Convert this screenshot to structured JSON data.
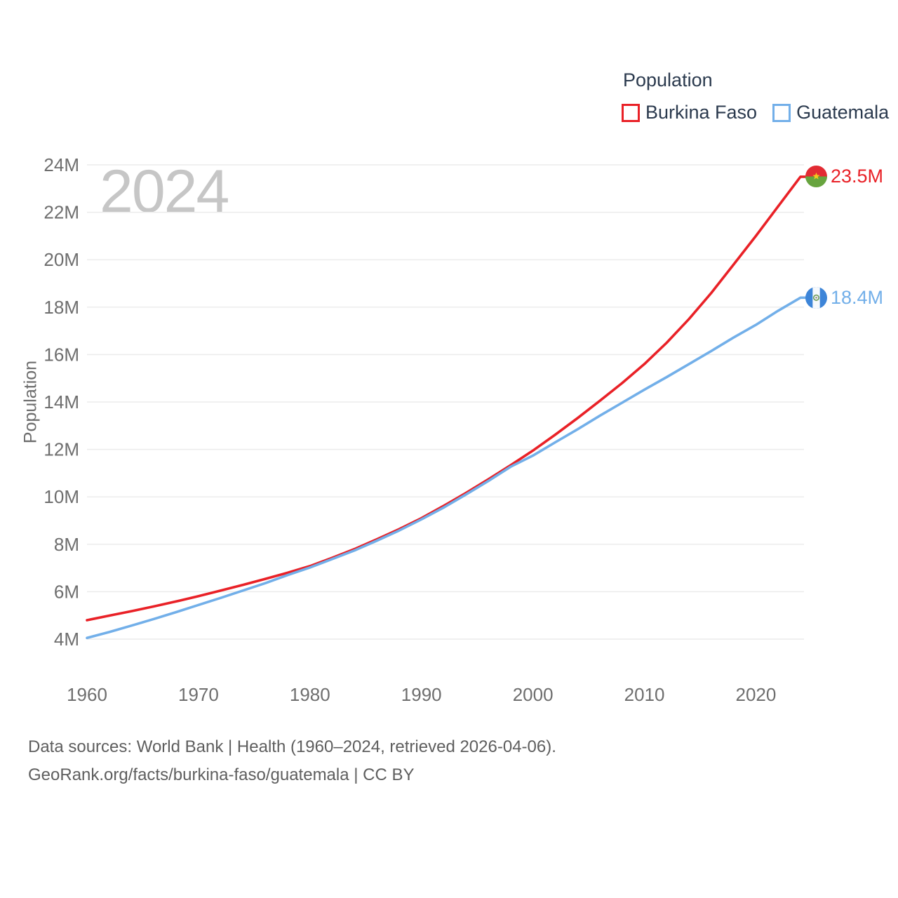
{
  "legend": {
    "title": "Population",
    "items": [
      {
        "label": "Burkina Faso"
      },
      {
        "label": "Guatemala"
      }
    ]
  },
  "footer": {
    "line1": "Data sources: World Bank | Health (1960–2024, retrieved 2026-04-06).",
    "line2": "GeoRank.org/facts/burkina-faso/guatemala | CC BY"
  },
  "chart_data": {
    "type": "line",
    "title": "Population",
    "ylabel": "Population",
    "watermark": "2024",
    "xlim": [
      1960,
      2024
    ],
    "ylim_millions": [
      4,
      24
    ],
    "grid": "horizontal",
    "legend_position": "top-right",
    "x_ticks": [
      1960,
      1970,
      1980,
      1990,
      2000,
      2010,
      2020
    ],
    "y_ticks": [
      {
        "v": 4,
        "label": "4M"
      },
      {
        "v": 6,
        "label": "6M"
      },
      {
        "v": 8,
        "label": "8M"
      },
      {
        "v": 10,
        "label": "10M"
      },
      {
        "v": 12,
        "label": "12M"
      },
      {
        "v": 14,
        "label": "14M"
      },
      {
        "v": 16,
        "label": "16M"
      },
      {
        "v": 18,
        "label": "18M"
      },
      {
        "v": 20,
        "label": "20M"
      },
      {
        "v": 22,
        "label": "22M"
      },
      {
        "v": 24,
        "label": "24M"
      }
    ],
    "series": [
      {
        "name": "Burkina Faso",
        "color": "#e92127",
        "flag": "burkina-faso",
        "end_label": "23.5M",
        "end_value_millions": 23.5,
        "years": [
          1960,
          1962,
          1964,
          1966,
          1968,
          1970,
          1972,
          1974,
          1976,
          1978,
          1980,
          1982,
          1984,
          1986,
          1988,
          1990,
          1992,
          1994,
          1996,
          1998,
          2000,
          2002,
          2004,
          2006,
          2008,
          2010,
          2012,
          2014,
          2016,
          2018,
          2020,
          2022,
          2024
        ],
        "values_millions": [
          4.8,
          4.99,
          5.18,
          5.38,
          5.59,
          5.81,
          6.05,
          6.29,
          6.54,
          6.8,
          7.08,
          7.43,
          7.8,
          8.21,
          8.64,
          9.1,
          9.62,
          10.17,
          10.74,
          11.33,
          11.95,
          12.62,
          13.32,
          14.05,
          14.8,
          15.6,
          16.5,
          17.5,
          18.6,
          19.8,
          21.0,
          22.25,
          23.5
        ]
      },
      {
        "name": "Guatemala",
        "color": "#72afe9",
        "flag": "guatemala",
        "end_label": "18.4M",
        "end_value_millions": 18.4,
        "years": [
          1960,
          1962,
          1964,
          1966,
          1968,
          1970,
          1972,
          1974,
          1976,
          1978,
          1980,
          1982,
          1984,
          1986,
          1988,
          1990,
          1992,
          1994,
          1996,
          1998,
          2000,
          2002,
          2004,
          2006,
          2008,
          2010,
          2012,
          2014,
          2016,
          2018,
          2020,
          2022,
          2024
        ],
        "values_millions": [
          4.05,
          4.3,
          4.57,
          4.85,
          5.14,
          5.44,
          5.74,
          6.05,
          6.36,
          6.7,
          7.02,
          7.38,
          7.74,
          8.15,
          8.58,
          9.05,
          9.55,
          10.1,
          10.67,
          11.27,
          11.74,
          12.3,
          12.85,
          13.42,
          13.97,
          14.52,
          15.05,
          15.6,
          16.15,
          16.72,
          17.25,
          17.85,
          18.4
        ]
      }
    ]
  }
}
